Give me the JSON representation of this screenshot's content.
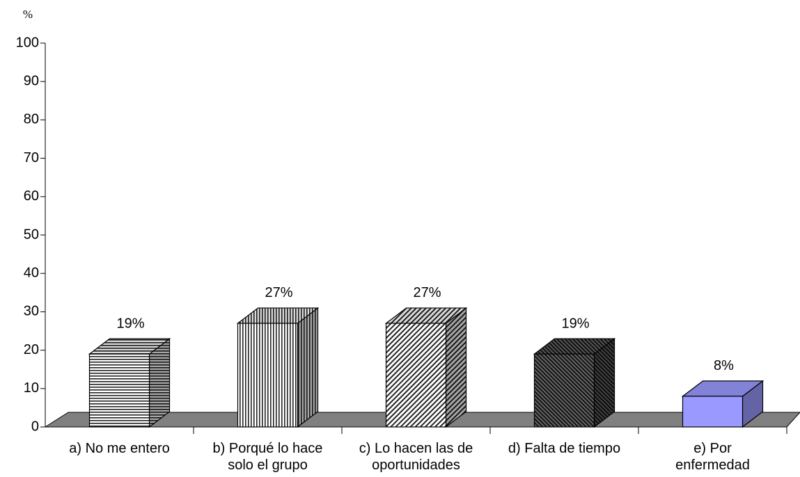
{
  "chart_data": {
    "type": "bar3d",
    "y_unit": "%",
    "categories": [
      [
        "a) No me entero"
      ],
      [
        "b) Porqué lo hace",
        "solo el grupo"
      ],
      [
        "c) Lo hacen las de",
        "oportunidades"
      ],
      [
        "d) Falta de tiempo"
      ],
      [
        "e) Por",
        "enfermedad"
      ]
    ],
    "values": [
      19,
      27,
      27,
      19,
      8
    ],
    "value_labels": [
      "19%",
      "27%",
      "27%",
      "19%",
      "8%"
    ],
    "ylim": [
      0,
      100
    ],
    "yticks": [
      0,
      10,
      20,
      30,
      40,
      50,
      60,
      70,
      80,
      90,
      100
    ]
  }
}
